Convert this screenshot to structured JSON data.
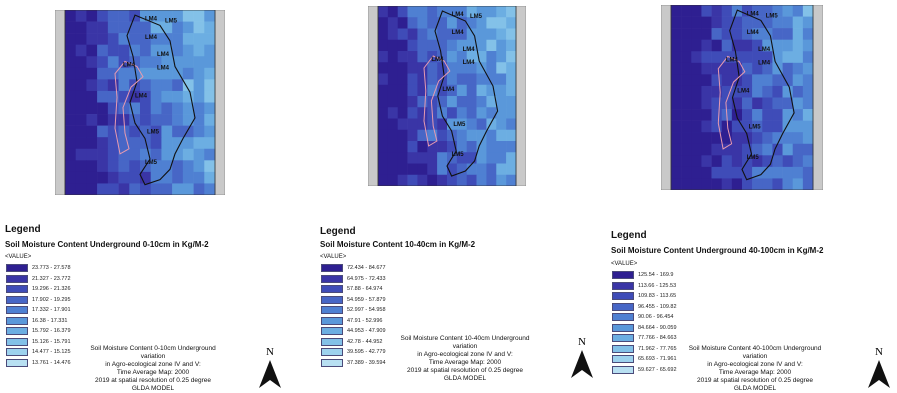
{
  "panels": [
    {
      "id": "0-10",
      "legend_title": "Legend",
      "legend_subtitle": "Soil Moisture Content Underground 0-10cm in Kg/M-2",
      "value_label": "<VALUE>",
      "classes": [
        "23.773 - 27.578",
        "21.327 - 23.772",
        "19.296 - 21.326",
        "17.902 - 19.295",
        "17.332 - 17.901",
        "16.38 - 17.331",
        "15.792 - 16.379",
        "15.126 - 15.791",
        "14.477 - 15.125",
        "13.761 - 14.476"
      ],
      "caption": [
        "Soil Moisture Content 0-10cm Underground variation",
        "in Agro-ecological zone IV and V:",
        "Time Average  Map: 2000",
        "2019 at spatial resolution of 0.25 degree",
        "GLDA MODEL"
      ],
      "north_label": "N"
    },
    {
      "id": "10-40",
      "legend_title": "Legend",
      "legend_subtitle": "Soil Moisture Content 10-40cm in Kg/M-2",
      "value_label": "<VALUE>",
      "classes": [
        "72.434 - 84.677",
        "64.975 - 72.433",
        "57.88 - 64.974",
        "54.959 - 57.879",
        "52.997 - 54.958",
        "47.91 - 52.996",
        "44.953 - 47.909",
        "42.78 - 44.952",
        "39.595 - 42.779",
        "37.389 - 39.594"
      ],
      "caption": [
        "Soil Moisture Content 10-40cm Underground variation",
        "in Agro-ecological zone IV and V:",
        "Time Average  Map: 2000",
        "2019 at spatial resolution of 0.25 degree",
        "GLDA MODEL"
      ],
      "north_label": "N"
    },
    {
      "id": "40-100",
      "legend_title": "Legend",
      "legend_subtitle": "Soil Moisture Content Underground 40-100cm in Kg/M-2",
      "value_label": "<VALUE>",
      "classes": [
        "125.54 - 169.9",
        "113.66 - 125.53",
        "109.83 - 113.65",
        "96.455 - 109.82",
        "90.06 - 96.454",
        "84.664 - 90.059",
        "77.766 - 84.663",
        "71.962 - 77.765",
        "65.693 - 71.961",
        "59.627 - 65.692"
      ],
      "caption": [
        "Soil Moisture Content 40-100cm Underground variation",
        "in Agro-ecological zone IV and V:",
        "Time Average  Map: 2000",
        "2019 at spatial resolution of 0.25 degree",
        "GLDA MODEL"
      ],
      "north_label": "N"
    }
  ],
  "map_labels": [
    "LM4",
    "LM5",
    "LM4",
    "LM4",
    "LM4",
    "LM4",
    "LM4",
    "LM5",
    "LM5"
  ],
  "colors": {
    "palette": [
      "#2e1f91",
      "#3a35a6",
      "#3f4cb8",
      "#4766c6",
      "#4f80d2",
      "#5a98da",
      "#6caee2",
      "#83c1e8",
      "#9dd2ee",
      "#b8e0f2"
    ]
  }
}
